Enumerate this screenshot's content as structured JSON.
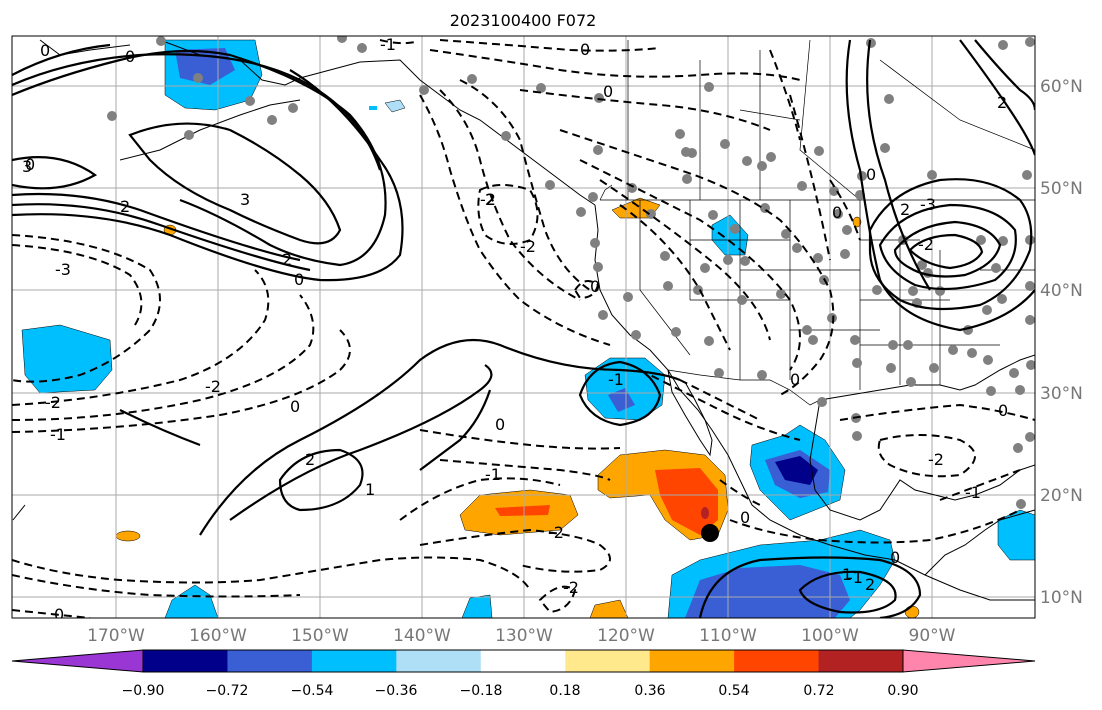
{
  "title": "2023100400 F072",
  "lon_labels": [
    "170°W",
    "160°W",
    "150°W",
    "140°W",
    "130°W",
    "120°W",
    "110°W",
    "100°W",
    "90°W"
  ],
  "lat_labels": [
    "60°N",
    "50°N",
    "40°N",
    "30°N",
    "20°N",
    "10°N"
  ],
  "colorbar": {
    "tick_labels": [
      "−0.90",
      "−0.72",
      "−0.54",
      "−0.36",
      "−0.18",
      "0.18",
      "0.36",
      "0.54",
      "0.72",
      "0.90"
    ],
    "colors": [
      "#9a37d4",
      "#00008b",
      "#3a5ed4",
      "#00bfff",
      "#aedff7",
      "#ffffff",
      "#ffe98c",
      "#ffa500",
      "#ff4500",
      "#b22222",
      "#ff85ad"
    ]
  },
  "contour_labels": {
    "l01": "0",
    "l02": "0",
    "l03": "-1",
    "l04": "0",
    "l05": "0",
    "l06": "0",
    "l07": "3",
    "l08": "2",
    "l09": "3",
    "l10": "2",
    "l11": "-3",
    "l12": "-2",
    "l13": "-2",
    "l14": "-1",
    "l15": "0",
    "l16": "2",
    "l17": "1",
    "l18": "0",
    "l19": "-1",
    "l20": "-2",
    "l21": "-1",
    "l22": "-2",
    "l23": "2",
    "l24": "-2",
    "l25": "0",
    "l26": "-3",
    "l27": "-2",
    "l28": "0",
    "l29": "-1",
    "l30": "0",
    "l31": "-2",
    "l32": "0",
    "l33": "1",
    "l34": "2",
    "l35": "0",
    "l36": "-1",
    "l37": "-2",
    "l38": "0",
    "l39": "2",
    "l40": "0",
    "l41": "0",
    "l42": "0",
    "l43": "2"
  }
}
